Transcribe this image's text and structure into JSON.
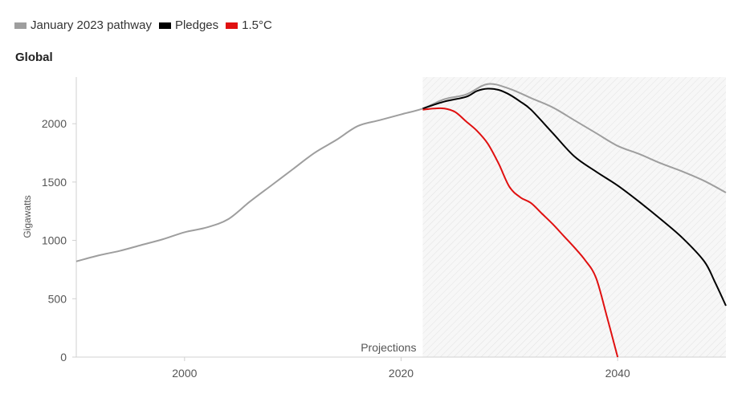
{
  "legend": [
    {
      "label": "January 2023 pathway",
      "color": "#9e9e9e"
    },
    {
      "label": "Pledges",
      "color": "#000000"
    },
    {
      "label": "1.5°C",
      "color": "#e01010"
    }
  ],
  "chart_data": {
    "type": "line",
    "title": "Global",
    "ylabel": "Gigawatts",
    "xlabel": "",
    "xlim": [
      1990,
      2050
    ],
    "ylim": [
      0,
      2400
    ],
    "xticks": [
      2000,
      2020,
      2040
    ],
    "yticks": [
      0,
      500,
      1000,
      1500,
      2000
    ],
    "projection_start": 2022,
    "projection_label": "Projections",
    "series": [
      {
        "name": "January 2023 pathway",
        "color": "#9e9e9e",
        "x": [
          1990,
          1992,
          1994,
          1996,
          1998,
          2000,
          2002,
          2004,
          2006,
          2008,
          2010,
          2012,
          2014,
          2016,
          2018,
          2020,
          2022,
          2024,
          2026,
          2028,
          2030,
          2032,
          2034,
          2036,
          2038,
          2040,
          2042,
          2044,
          2046,
          2048,
          2050
        ],
        "y": [
          820,
          870,
          910,
          960,
          1010,
          1070,
          1110,
          1180,
          1330,
          1470,
          1610,
          1750,
          1860,
          1980,
          2030,
          2080,
          2130,
          2210,
          2250,
          2340,
          2300,
          2220,
          2140,
          2030,
          1920,
          1810,
          1740,
          1660,
          1590,
          1510,
          1410
        ]
      },
      {
        "name": "Pledges",
        "color": "#000000",
        "x": [
          2022,
          2024,
          2026,
          2027,
          2028,
          2029,
          2030,
          2031,
          2032,
          2034,
          2036,
          2038,
          2040,
          2042,
          2044,
          2046,
          2048,
          2049,
          2050
        ],
        "y": [
          2130,
          2190,
          2230,
          2280,
          2300,
          2290,
          2250,
          2190,
          2120,
          1920,
          1720,
          1590,
          1470,
          1330,
          1180,
          1020,
          820,
          640,
          440
        ]
      },
      {
        "name": "1.5°C",
        "color": "#e01010",
        "x": [
          2022,
          2023,
          2024,
          2025,
          2026,
          2027,
          2028,
          2029,
          2030,
          2031,
          2032,
          2033,
          2034,
          2035,
          2036,
          2037,
          2038,
          2039,
          2040
        ],
        "y": [
          2120,
          2130,
          2130,
          2100,
          2020,
          1940,
          1830,
          1660,
          1460,
          1370,
          1320,
          1230,
          1140,
          1040,
          940,
          830,
          680,
          350,
          0
        ]
      }
    ]
  }
}
